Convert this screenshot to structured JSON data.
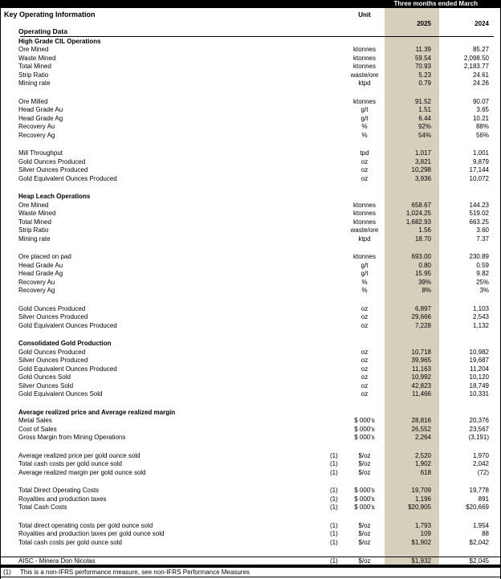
{
  "header": {
    "period": "Three months ended March",
    "title": "Key Operating Information",
    "subtitle": "Operating Data",
    "unit": "Unit",
    "year_2025": "2025",
    "year_2024": "2024"
  },
  "colors": {
    "highlight": "#d6cfbc",
    "bar": "#000000",
    "text": "#000000",
    "background": "#ffffff"
  },
  "rows": [
    {
      "type": "section",
      "label": "High Grade CIL Operations"
    },
    {
      "type": "data",
      "label": "Ore Mined",
      "note": "",
      "unit": "ktonnes",
      "y2025": "11.39",
      "y2024": "85.27"
    },
    {
      "type": "data",
      "label": "Waste Mined",
      "note": "",
      "unit": "ktonnes",
      "y2025": "59.54",
      "y2024": "2,098.50"
    },
    {
      "type": "data",
      "label": "Total Mined",
      "note": "",
      "unit": "ktonnes",
      "y2025": "70.93",
      "y2024": "2,183.77"
    },
    {
      "type": "data",
      "label": "Strip Ratio",
      "note": "",
      "unit": "waste/ore",
      "y2025": "5.23",
      "y2024": "24.61"
    },
    {
      "type": "data",
      "label": "Mining rate",
      "note": "",
      "unit": "ktpd",
      "y2025": "0.79",
      "y2024": "24.26"
    },
    {
      "type": "spacer"
    },
    {
      "type": "data",
      "label": "Ore Milled",
      "note": "",
      "unit": "ktonnes",
      "y2025": "91.52",
      "y2024": "90.07"
    },
    {
      "type": "data",
      "label": "Head Grade Au",
      "note": "",
      "unit": "g/t",
      "y2025": "1.51",
      "y2024": "3.65"
    },
    {
      "type": "data",
      "label": "Head Grade Ag",
      "note": "",
      "unit": "g/t",
      "y2025": "6.44",
      "y2024": "10.21"
    },
    {
      "type": "data",
      "label": "Recovery Au",
      "note": "",
      "unit": "%",
      "y2025": "92%",
      "y2024": "88%"
    },
    {
      "type": "data",
      "label": "Recovery Ag",
      "note": "",
      "unit": "%",
      "y2025": "54%",
      "y2024": "56%"
    },
    {
      "type": "spacer"
    },
    {
      "type": "data",
      "label": "Mill Throughput",
      "note": "",
      "unit": "tpd",
      "y2025": "1,017",
      "y2024": "1,001"
    },
    {
      "type": "data",
      "label": "Gold Ounces Produced",
      "note": "",
      "unit": "oz",
      "y2025": "3,821",
      "y2024": "9,879"
    },
    {
      "type": "data",
      "label": "Silver Ounces Produced",
      "note": "",
      "unit": "oz",
      "y2025": "10,298",
      "y2024": "17,144"
    },
    {
      "type": "data",
      "label": "Gold Equivalent Ounces Produced",
      "note": "",
      "unit": "oz",
      "y2025": "3,936",
      "y2024": "10,072"
    },
    {
      "type": "spacer"
    },
    {
      "type": "section",
      "label": "Heap Leach Operations"
    },
    {
      "type": "data",
      "label": "Ore Mined",
      "note": "",
      "unit": "ktonnes",
      "y2025": "658.67",
      "y2024": "144.23"
    },
    {
      "type": "data",
      "label": "Waste Mined",
      "note": "",
      "unit": "ktonnes",
      "y2025": "1,024.25",
      "y2024": "519.02"
    },
    {
      "type": "data",
      "label": "Total Mined",
      "note": "",
      "unit": "ktonnes",
      "y2025": "1,682.93",
      "y2024": "663.25"
    },
    {
      "type": "data",
      "label": "Strip Ratio",
      "note": "",
      "unit": "waste/ore",
      "y2025": "1.56",
      "y2024": "3.60"
    },
    {
      "type": "data",
      "label": "Mining rate",
      "note": "",
      "unit": "ktpd",
      "y2025": "18.70",
      "y2024": "7.37"
    },
    {
      "type": "spacer"
    },
    {
      "type": "data",
      "label": "Ore placed on pad",
      "note": "",
      "unit": "ktonnes",
      "y2025": "693.00",
      "y2024": "230.89"
    },
    {
      "type": "data",
      "label": "Head Grade Au",
      "note": "",
      "unit": "g/t",
      "y2025": "0.80",
      "y2024": "0.59"
    },
    {
      "type": "data",
      "label": "Head Grade Ag",
      "note": "",
      "unit": "g/t",
      "y2025": "15.95",
      "y2024": "9.82"
    },
    {
      "type": "data",
      "label": "Recovery Au",
      "note": "",
      "unit": "%",
      "y2025": "39%",
      "y2024": "25%"
    },
    {
      "type": "data",
      "label": "Recovery Ag",
      "note": "",
      "unit": "%",
      "y2025": "8%",
      "y2024": "3%"
    },
    {
      "type": "spacer"
    },
    {
      "type": "data",
      "label": "Gold Ounces Produced",
      "note": "",
      "unit": "oz",
      "y2025": "6,897",
      "y2024": "1,103"
    },
    {
      "type": "data",
      "label": "Silver Ounces Produced",
      "note": "",
      "unit": "oz",
      "y2025": "29,666",
      "y2024": "2,543"
    },
    {
      "type": "data",
      "label": "Gold Equivalent Ounces Produced",
      "note": "",
      "unit": "oz",
      "y2025": "7,228",
      "y2024": "1,132"
    },
    {
      "type": "spacer"
    },
    {
      "type": "section",
      "label": "Consolidated Gold Production"
    },
    {
      "type": "data",
      "label": "Gold Ounces Produced",
      "note": "",
      "unit": "oz",
      "y2025": "10,718",
      "y2024": "10,982"
    },
    {
      "type": "data",
      "label": "Silver Ounces Produced",
      "note": "",
      "unit": "oz",
      "y2025": "39,965",
      "y2024": "19,687"
    },
    {
      "type": "data",
      "label": "Gold Equivalent Ounces Produced",
      "note": "",
      "unit": "oz",
      "y2025": "11,163",
      "y2024": "11,204"
    },
    {
      "type": "data",
      "label": "Gold Ounces Sold",
      "note": "",
      "unit": "oz",
      "y2025": "10,992",
      "y2024": "10,120"
    },
    {
      "type": "data",
      "label": "Silver Ounces Sold",
      "note": "",
      "unit": "oz",
      "y2025": "42,823",
      "y2024": "18,749"
    },
    {
      "type": "data",
      "label": "Gold Equivalent Ounces Sold",
      "note": "",
      "unit": "oz",
      "y2025": "11,466",
      "y2024": "10,331"
    },
    {
      "type": "spacer"
    },
    {
      "type": "section",
      "label": "Average realized price and Average realized margin"
    },
    {
      "type": "data",
      "label": "Metal Sales",
      "note": "",
      "unit": "$ 000's",
      "y2025": "28,816",
      "y2024": "20,376"
    },
    {
      "type": "data",
      "label": "Cost of Sales",
      "note": "",
      "unit": "$ 000's",
      "y2025": "26,552",
      "y2024": "23,567"
    },
    {
      "type": "data",
      "label": "Gross Margin from Mining Operations",
      "note": "",
      "unit": "$ 000's",
      "y2025": "2,264",
      "y2024": "(3,191)"
    },
    {
      "type": "spacer"
    },
    {
      "type": "data",
      "label": "Average realized price per gold ounce sold",
      "note": "(1)",
      "unit": "$/oz",
      "y2025": "2,520",
      "y2024": "1,970"
    },
    {
      "type": "data",
      "label": "Total cash costs per gold ounce sold",
      "note": "(1)",
      "unit": "$/oz",
      "y2025": "1,902",
      "y2024": "2,042"
    },
    {
      "type": "data",
      "label": "Average realized margin per gold ounce sold",
      "note": "(1)",
      "unit": "$/oz",
      "y2025": "618",
      "y2024": "(72)"
    },
    {
      "type": "spacer"
    },
    {
      "type": "data",
      "label": "Total Direct Operating Costs",
      "note": "(1)",
      "unit": "$ 000's",
      "y2025": "19,709",
      "y2024": "19,778"
    },
    {
      "type": "data",
      "label": "Royalties and production taxes",
      "note": "(1)",
      "unit": "$ 000's",
      "y2025": "1,196",
      "y2024": "891"
    },
    {
      "type": "data",
      "label": "Total Cash Costs",
      "note": "(1)",
      "unit": "$ 000's",
      "y2025": "$20,905",
      "y2024": "$20,669"
    },
    {
      "type": "spacer"
    },
    {
      "type": "data",
      "label": "Total direct operating costs per gold ounce sold",
      "note": "(1)",
      "unit": "$/oz",
      "y2025": "1,793",
      "y2024": "1,954"
    },
    {
      "type": "data",
      "label": "Royalties and production taxes per gold ounce sold",
      "note": "(1)",
      "unit": "$/oz",
      "y2025": "109",
      "y2024": "88"
    },
    {
      "type": "data",
      "label": "Total cash costs per gold ounce sold",
      "note": "(1)",
      "unit": "$/oz",
      "y2025": "$1,902",
      "y2024": "$2,042"
    },
    {
      "type": "spacer"
    },
    {
      "type": "data",
      "label": "AISC - Minera Don Nicolas",
      "note": "(1)",
      "unit": "$/oz",
      "y2025": "$1,932",
      "y2024": "$2,045",
      "rule_above": true
    }
  ],
  "footnote": {
    "marker": "(1)",
    "text": "This is a non-IFRS performance measure, see non-IFRS Performance Measures"
  }
}
